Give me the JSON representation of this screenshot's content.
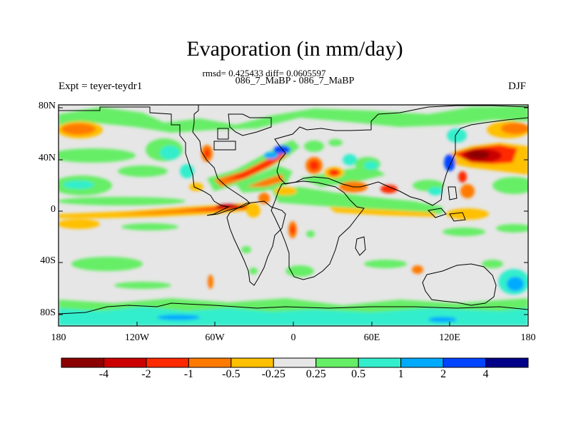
{
  "title": "Evaporation (in mm/day)",
  "stats": "rmsd= 0.425433 diff= 0.0605597",
  "cases": "086_7_MaBP - 086_7_MaBP",
  "expt": "Expt = teyer-teydr1",
  "season": "DJF",
  "lat_labels": [
    "80N",
    "40N",
    "0",
    "40S",
    "80S"
  ],
  "lon_labels": [
    "180",
    "120W",
    "60W",
    "0",
    "60E",
    "120E",
    "180"
  ],
  "colorbar": {
    "labels": [
      "-4",
      "-2",
      "-1",
      "-0.5",
      "-0.25",
      "0.25",
      "0.5",
      "1",
      "2",
      "4"
    ],
    "colors": [
      "#8b0000",
      "#cc0000",
      "#ff2a00",
      "#ff7a00",
      "#ffc000",
      "#e6e6e6",
      "#66ee66",
      "#33eecc",
      "#00aaff",
      "#0044ff",
      "#000088"
    ]
  }
}
